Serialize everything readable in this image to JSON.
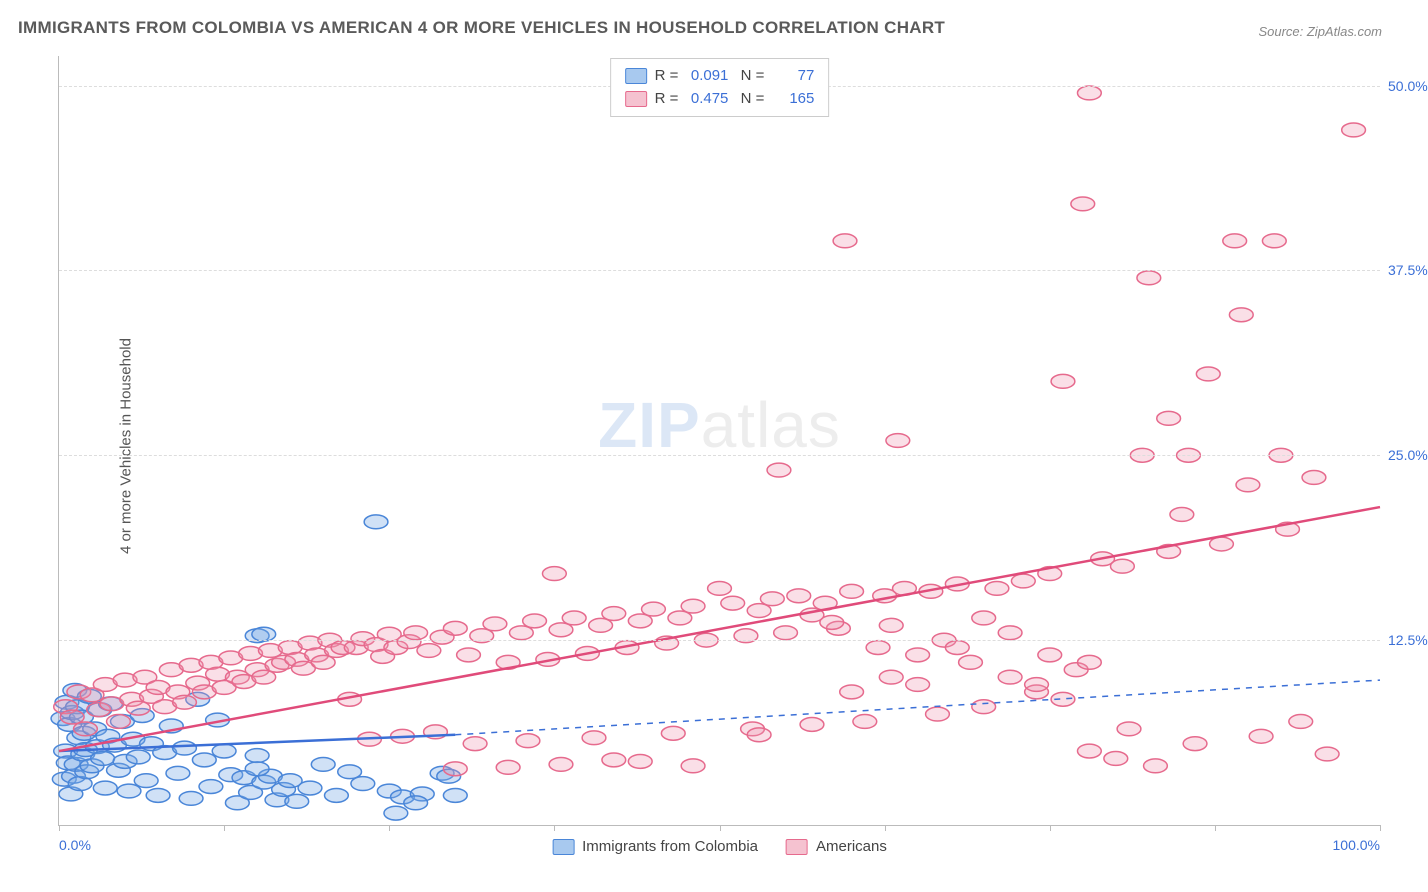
{
  "title": "IMMIGRANTS FROM COLOMBIA VS AMERICAN 4 OR MORE VEHICLES IN HOUSEHOLD CORRELATION CHART",
  "source": "Source: ZipAtlas.com",
  "ylabel": "4 or more Vehicles in Household",
  "watermark": {
    "part1": "ZIP",
    "part2": "atlas"
  },
  "chart": {
    "type": "scatter",
    "xlim": [
      0,
      100
    ],
    "ylim": [
      0,
      52
    ],
    "xticks": [
      0,
      12.5,
      25,
      37.5,
      50,
      62.5,
      75,
      87.5,
      100
    ],
    "yticks": [
      12.5,
      25,
      37.5,
      50
    ],
    "ytick_labels": [
      "12.5%",
      "25.0%",
      "37.5%",
      "50.0%"
    ],
    "xaxis_min_label": "0.0%",
    "xaxis_max_label": "100.0%",
    "background_color": "#ffffff",
    "grid_color": "#dddddd",
    "axis_color": "#bbbbbb",
    "tick_label_color": "#3b6fd6",
    "marker_radius": 9,
    "marker_stroke_width": 1.5,
    "trend_line_width": 2.5,
    "series": [
      {
        "id": "colombia",
        "label": "Immigrants from Colombia",
        "fill": "rgba(120,170,230,0.35)",
        "stroke": "#4a86d8",
        "swatch_fill": "#a8c9ef",
        "swatch_border": "#4a86d8",
        "R": "0.091",
        "N": "77",
        "trend": {
          "x1": 0,
          "y1": 5.0,
          "x2": 30,
          "y2": 6.1,
          "solid_until": 30,
          "dash_x2": 100,
          "dash_y2": 9.8,
          "color": "#3b6fd6"
        },
        "points": [
          [
            0.3,
            7.2
          ],
          [
            0.4,
            3.1
          ],
          [
            0.5,
            5.0
          ],
          [
            0.6,
            8.3
          ],
          [
            0.7,
            4.2
          ],
          [
            0.8,
            6.8
          ],
          [
            0.9,
            2.1
          ],
          [
            1.0,
            7.6
          ],
          [
            1.1,
            3.3
          ],
          [
            1.2,
            9.1
          ],
          [
            1.3,
            4.1
          ],
          [
            1.4,
            8.0
          ],
          [
            1.5,
            5.9
          ],
          [
            1.6,
            2.8
          ],
          [
            1.7,
            7.3
          ],
          [
            1.8,
            4.8
          ],
          [
            1.9,
            6.2
          ],
          [
            2.0,
            5.1
          ],
          [
            2.1,
            3.6
          ],
          [
            2.3,
            8.7
          ],
          [
            2.5,
            4.0
          ],
          [
            2.7,
            6.5
          ],
          [
            2.9,
            5.3
          ],
          [
            3.1,
            7.8
          ],
          [
            3.3,
            4.5
          ],
          [
            3.5,
            2.5
          ],
          [
            3.7,
            6.0
          ],
          [
            3.9,
            8.2
          ],
          [
            4.2,
            5.4
          ],
          [
            4.5,
            3.7
          ],
          [
            4.8,
            7.0
          ],
          [
            5.0,
            4.3
          ],
          [
            5.3,
            2.3
          ],
          [
            5.6,
            5.8
          ],
          [
            6.0,
            4.6
          ],
          [
            6.3,
            7.4
          ],
          [
            6.6,
            3.0
          ],
          [
            7.0,
            5.5
          ],
          [
            7.5,
            2.0
          ],
          [
            8.0,
            4.9
          ],
          [
            8.5,
            6.7
          ],
          [
            9.0,
            3.5
          ],
          [
            9.5,
            5.2
          ],
          [
            10.0,
            1.8
          ],
          [
            10.5,
            8.5
          ],
          [
            11.0,
            4.4
          ],
          [
            11.5,
            2.6
          ],
          [
            12.0,
            7.1
          ],
          [
            12.5,
            5.0
          ],
          [
            13.0,
            3.4
          ],
          [
            13.5,
            1.5
          ],
          [
            14.0,
            3.2
          ],
          [
            14.5,
            2.2
          ],
          [
            15.0,
            4.7
          ],
          [
            15.5,
            2.9
          ],
          [
            16.0,
            3.3
          ],
          [
            16.5,
            1.7
          ],
          [
            17.0,
            2.4
          ],
          [
            17.5,
            3.0
          ],
          [
            18.0,
            1.6
          ],
          [
            15.0,
            12.8
          ],
          [
            15.5,
            12.9
          ],
          [
            15.0,
            3.8
          ],
          [
            19.0,
            2.5
          ],
          [
            20.0,
            4.1
          ],
          [
            21.0,
            2.0
          ],
          [
            22.0,
            3.6
          ],
          [
            23.0,
            2.8
          ],
          [
            24.0,
            20.5
          ],
          [
            25.0,
            2.3
          ],
          [
            26.0,
            1.9
          ],
          [
            27.5,
            2.1
          ],
          [
            29.0,
            3.5
          ],
          [
            30.0,
            2.0
          ],
          [
            29.5,
            3.3
          ],
          [
            27.0,
            1.5
          ],
          [
            25.5,
            0.8
          ]
        ]
      },
      {
        "id": "americans",
        "label": "Americans",
        "fill": "rgba(240,150,175,0.30)",
        "stroke": "#e66a8d",
        "swatch_fill": "#f5c2d0",
        "swatch_border": "#e66a8d",
        "R": "0.475",
        "N": "165",
        "trend": {
          "x1": 0,
          "y1": 5.0,
          "x2": 100,
          "y2": 21.5,
          "solid_until": 100,
          "color": "#e04b7a"
        },
        "points": [
          [
            0.5,
            8.0
          ],
          [
            1.0,
            7.3
          ],
          [
            1.5,
            9.0
          ],
          [
            2.0,
            6.5
          ],
          [
            2.5,
            8.8
          ],
          [
            3.0,
            7.8
          ],
          [
            3.5,
            9.5
          ],
          [
            4.0,
            8.2
          ],
          [
            4.5,
            7.0
          ],
          [
            5.0,
            9.8
          ],
          [
            5.5,
            8.5
          ],
          [
            6.0,
            7.9
          ],
          [
            6.5,
            10.0
          ],
          [
            7.0,
            8.7
          ],
          [
            7.5,
            9.3
          ],
          [
            8.0,
            8.0
          ],
          [
            8.5,
            10.5
          ],
          [
            9.0,
            9.0
          ],
          [
            9.5,
            8.3
          ],
          [
            10.0,
            10.8
          ],
          [
            10.5,
            9.6
          ],
          [
            11.0,
            9.0
          ],
          [
            11.5,
            11.0
          ],
          [
            12.0,
            10.2
          ],
          [
            12.5,
            9.3
          ],
          [
            13.0,
            11.3
          ],
          [
            13.5,
            10.0
          ],
          [
            14.0,
            9.7
          ],
          [
            14.5,
            11.6
          ],
          [
            15.0,
            10.5
          ],
          [
            15.5,
            10.0
          ],
          [
            16.0,
            11.8
          ],
          [
            16.5,
            10.8
          ],
          [
            17.0,
            11.0
          ],
          [
            17.5,
            12.0
          ],
          [
            18.0,
            11.2
          ],
          [
            18.5,
            10.6
          ],
          [
            19.0,
            12.3
          ],
          [
            19.5,
            11.5
          ],
          [
            20.0,
            11.0
          ],
          [
            20.5,
            12.5
          ],
          [
            21.0,
            11.8
          ],
          [
            21.5,
            12.0
          ],
          [
            22.0,
            8.5
          ],
          [
            22.5,
            12.0
          ],
          [
            23.0,
            12.6
          ],
          [
            23.5,
            5.8
          ],
          [
            24.0,
            12.2
          ],
          [
            24.5,
            11.4
          ],
          [
            25.0,
            12.9
          ],
          [
            25.5,
            12.0
          ],
          [
            26.0,
            6.0
          ],
          [
            26.5,
            12.4
          ],
          [
            27.0,
            13.0
          ],
          [
            28.0,
            11.8
          ],
          [
            28.5,
            6.3
          ],
          [
            29.0,
            12.7
          ],
          [
            30.0,
            13.3
          ],
          [
            31.0,
            11.5
          ],
          [
            31.5,
            5.5
          ],
          [
            32.0,
            12.8
          ],
          [
            33.0,
            13.6
          ],
          [
            34.0,
            11.0
          ],
          [
            35.0,
            13.0
          ],
          [
            35.5,
            5.7
          ],
          [
            36.0,
            13.8
          ],
          [
            37.0,
            11.2
          ],
          [
            37.5,
            17.0
          ],
          [
            38.0,
            13.2
          ],
          [
            39.0,
            14.0
          ],
          [
            40.0,
            11.6
          ],
          [
            40.5,
            5.9
          ],
          [
            41.0,
            13.5
          ],
          [
            42.0,
            14.3
          ],
          [
            43.0,
            12.0
          ],
          [
            44.0,
            13.8
          ],
          [
            45.0,
            14.6
          ],
          [
            46.0,
            12.3
          ],
          [
            46.5,
            6.2
          ],
          [
            47.0,
            14.0
          ],
          [
            48.0,
            14.8
          ],
          [
            49.0,
            12.5
          ],
          [
            50.0,
            16.0
          ],
          [
            51.0,
            15.0
          ],
          [
            52.0,
            12.8
          ],
          [
            52.5,
            6.5
          ],
          [
            53.0,
            14.5
          ],
          [
            54.0,
            15.3
          ],
          [
            54.5,
            24.0
          ],
          [
            55.0,
            13.0
          ],
          [
            56.0,
            15.5
          ],
          [
            57.0,
            6.8
          ],
          [
            58.0,
            15.0
          ],
          [
            59.0,
            13.3
          ],
          [
            59.5,
            39.5
          ],
          [
            60.0,
            15.8
          ],
          [
            61.0,
            7.0
          ],
          [
            62.0,
            12.0
          ],
          [
            62.5,
            15.5
          ],
          [
            63.0,
            13.5
          ],
          [
            63.5,
            26.0
          ],
          [
            64.0,
            16.0
          ],
          [
            65.0,
            11.5
          ],
          [
            66.0,
            15.8
          ],
          [
            66.5,
            7.5
          ],
          [
            67.0,
            12.5
          ],
          [
            68.0,
            16.3
          ],
          [
            69.0,
            11.0
          ],
          [
            70.0,
            8.0
          ],
          [
            71.0,
            16.0
          ],
          [
            72.0,
            10.0
          ],
          [
            73.0,
            16.5
          ],
          [
            74.0,
            9.0
          ],
          [
            75.0,
            17.0
          ],
          [
            76.0,
            8.5
          ],
          [
            77.0,
            10.5
          ],
          [
            78.0,
            5.0
          ],
          [
            79.0,
            18.0
          ],
          [
            80.0,
            4.5
          ],
          [
            76.0,
            30.0
          ],
          [
            77.5,
            42.0
          ],
          [
            80.5,
            17.5
          ],
          [
            81.0,
            6.5
          ],
          [
            82.0,
            25.0
          ],
          [
            82.5,
            37.0
          ],
          [
            83.0,
            4.0
          ],
          [
            84.0,
            18.5
          ],
          [
            85.0,
            21.0
          ],
          [
            78.0,
            49.5
          ],
          [
            85.5,
            25.0
          ],
          [
            86.0,
            5.5
          ],
          [
            87.0,
            30.5
          ],
          [
            88.0,
            19.0
          ],
          [
            89.0,
            39.5
          ],
          [
            89.5,
            34.5
          ],
          [
            90.0,
            23.0
          ],
          [
            91.0,
            6.0
          ],
          [
            92.0,
            39.5
          ],
          [
            92.5,
            25.0
          ],
          [
            93.0,
            20.0
          ],
          [
            94.0,
            7.0
          ],
          [
            95.0,
            23.5
          ],
          [
            96.0,
            4.8
          ],
          [
            98.0,
            47.0
          ],
          [
            84.0,
            27.5
          ],
          [
            57.0,
            14.2
          ],
          [
            58.5,
            13.7
          ],
          [
            48.0,
            4.0
          ],
          [
            44.0,
            4.3
          ],
          [
            53.0,
            6.1
          ],
          [
            38.0,
            4.1
          ],
          [
            42.0,
            4.4
          ],
          [
            34.0,
            3.9
          ],
          [
            30.0,
            3.8
          ],
          [
            70.0,
            14.0
          ],
          [
            72.0,
            13.0
          ],
          [
            68.0,
            12.0
          ],
          [
            75.0,
            11.5
          ],
          [
            65.0,
            9.5
          ],
          [
            63.0,
            10.0
          ],
          [
            60.0,
            9.0
          ],
          [
            78.0,
            11.0
          ],
          [
            74.0,
            9.5
          ]
        ]
      }
    ],
    "legend_bottom": [
      {
        "series": "colombia"
      },
      {
        "series": "americans"
      }
    ]
  }
}
